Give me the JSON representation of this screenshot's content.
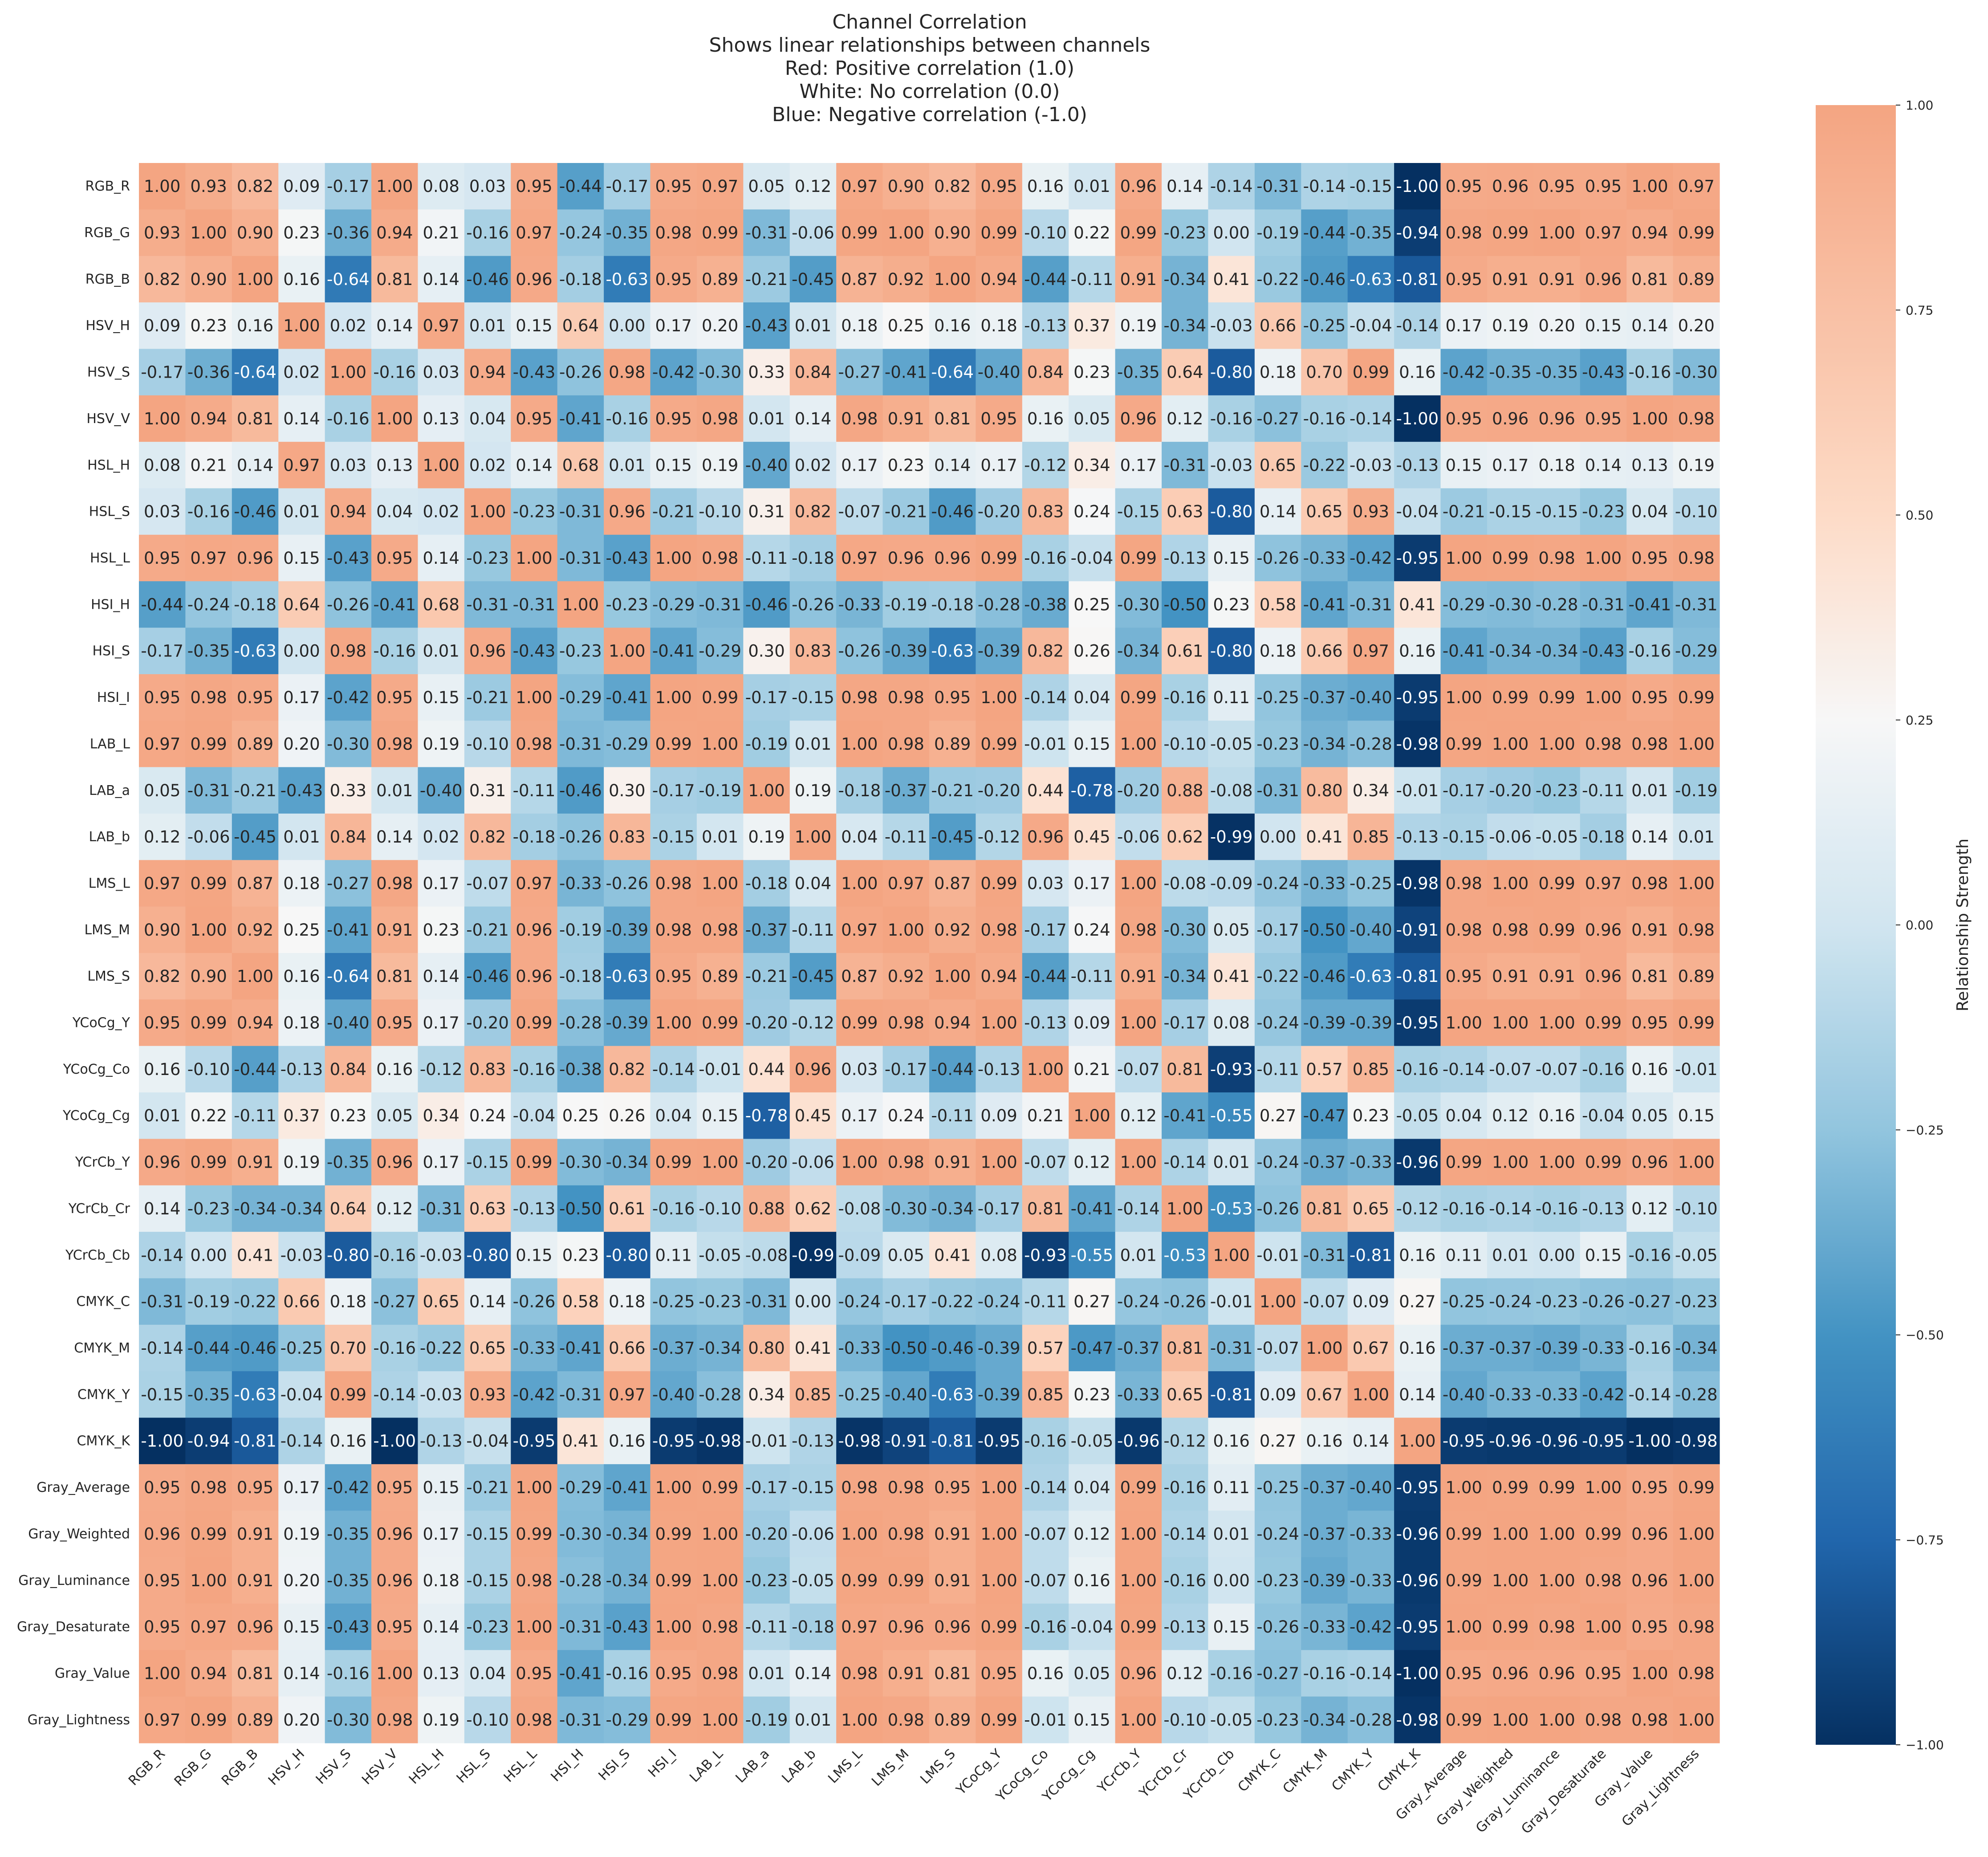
{
  "chart_data": {
    "type": "heatmap",
    "title": "Channel Correlation",
    "subtitle_lines": [
      "Shows linear relationships between channels",
      "Red: Positive correlation (1.0)",
      "White: No correlation (0.0)",
      "Blue: Negative correlation (-1.0)"
    ],
    "colorbar": {
      "label": "Relationship Strength",
      "range": [
        -1.0,
        1.0
      ],
      "ticks": [
        "1.00",
        "0.75",
        "0.50",
        "0.25",
        "0.00",
        "−0.25",
        "−0.50",
        "−0.75",
        "−1.00"
      ],
      "colormap": "RdBu_r"
    },
    "labels": [
      "RGB_R",
      "RGB_G",
      "RGB_B",
      "HSV_H",
      "HSV_S",
      "HSV_V",
      "HSL_H",
      "HSL_S",
      "HSL_L",
      "HSI_H",
      "HSI_S",
      "HSI_I",
      "LAB_L",
      "LAB_a",
      "LAB_b",
      "LMS_L",
      "LMS_M",
      "LMS_S",
      "YCoCg_Y",
      "YCoCg_Co",
      "YCoCg_Cg",
      "YCrCb_Y",
      "YCrCb_Cr",
      "YCrCb_Cb",
      "CMYK_C",
      "CMYK_M",
      "CMYK_Y",
      "CMYK_K",
      "Gray_Average",
      "Gray_Weighted",
      "Gray_Luminance",
      "Gray_Desaturate",
      "Gray_Value",
      "Gray_Lightness"
    ],
    "matrix": [
      [
        1.0,
        0.93,
        0.82,
        0.09,
        -0.17,
        1.0,
        0.08,
        0.03,
        0.95,
        -0.44,
        -0.17,
        0.95,
        0.97,
        0.05,
        0.12,
        0.97,
        0.9,
        0.82,
        0.95,
        0.16,
        0.01,
        0.96,
        0.14,
        -0.14,
        -0.31,
        -0.14,
        -0.15,
        -1.0,
        0.95,
        0.96,
        0.95,
        0.95,
        1.0,
        0.97
      ],
      [
        0.93,
        1.0,
        0.9,
        0.23,
        -0.36,
        0.94,
        0.21,
        -0.16,
        0.97,
        -0.24,
        -0.35,
        0.98,
        0.99,
        -0.31,
        -0.06,
        0.99,
        1.0,
        0.9,
        0.99,
        -0.1,
        0.22,
        0.99,
        -0.23,
        0.0,
        -0.19,
        -0.44,
        -0.35,
        -0.94,
        0.98,
        0.99,
        1.0,
        0.97,
        0.94,
        0.99
      ],
      [
        0.82,
        0.9,
        1.0,
        0.16,
        -0.64,
        0.81,
        0.14,
        -0.46,
        0.96,
        -0.18,
        -0.63,
        0.95,
        0.89,
        -0.21,
        -0.45,
        0.87,
        0.92,
        1.0,
        0.94,
        -0.44,
        -0.11,
        0.91,
        -0.34,
        0.41,
        -0.22,
        -0.46,
        -0.63,
        -0.81,
        0.95,
        0.91,
        0.91,
        0.96,
        0.81,
        0.89
      ],
      [
        0.09,
        0.23,
        0.16,
        1.0,
        0.02,
        0.14,
        0.97,
        0.01,
        0.15,
        0.64,
        0.0,
        0.17,
        0.2,
        -0.43,
        0.01,
        0.18,
        0.25,
        0.16,
        0.18,
        -0.13,
        0.37,
        0.19,
        -0.34,
        -0.03,
        0.66,
        -0.25,
        -0.04,
        -0.14,
        0.17,
        0.19,
        0.2,
        0.15,
        0.14,
        0.2
      ],
      [
        -0.17,
        -0.36,
        -0.64,
        0.02,
        1.0,
        -0.16,
        0.03,
        0.94,
        -0.43,
        -0.26,
        0.98,
        -0.42,
        -0.3,
        0.33,
        0.84,
        -0.27,
        -0.41,
        -0.64,
        -0.4,
        0.84,
        0.23,
        -0.35,
        0.64,
        -0.8,
        0.18,
        0.7,
        0.99,
        0.16,
        -0.42,
        -0.35,
        -0.35,
        -0.43,
        -0.16,
        -0.3
      ],
      [
        1.0,
        0.94,
        0.81,
        0.14,
        -0.16,
        1.0,
        0.13,
        0.04,
        0.95,
        -0.41,
        -0.16,
        0.95,
        0.98,
        0.01,
        0.14,
        0.98,
        0.91,
        0.81,
        0.95,
        0.16,
        0.05,
        0.96,
        0.12,
        -0.16,
        -0.27,
        -0.16,
        -0.14,
        -1.0,
        0.95,
        0.96,
        0.96,
        0.95,
        1.0,
        0.98
      ],
      [
        0.08,
        0.21,
        0.14,
        0.97,
        0.03,
        0.13,
        1.0,
        0.02,
        0.14,
        0.68,
        0.01,
        0.15,
        0.19,
        -0.4,
        0.02,
        0.17,
        0.23,
        0.14,
        0.17,
        -0.12,
        0.34,
        0.17,
        -0.31,
        -0.03,
        0.65,
        -0.22,
        -0.03,
        -0.13,
        0.15,
        0.17,
        0.18,
        0.14,
        0.13,
        0.19
      ],
      [
        0.03,
        -0.16,
        -0.46,
        0.01,
        0.94,
        0.04,
        0.02,
        1.0,
        -0.23,
        -0.31,
        0.96,
        -0.21,
        -0.1,
        0.31,
        0.82,
        -0.07,
        -0.21,
        -0.46,
        -0.2,
        0.83,
        0.24,
        -0.15,
        0.63,
        -0.8,
        0.14,
        0.65,
        0.93,
        -0.04,
        -0.21,
        -0.15,
        -0.15,
        -0.23,
        0.04,
        -0.1
      ],
      [
        0.95,
        0.97,
        0.96,
        0.15,
        -0.43,
        0.95,
        0.14,
        -0.23,
        1.0,
        -0.31,
        -0.43,
        1.0,
        0.98,
        -0.11,
        -0.18,
        0.97,
        0.96,
        0.96,
        0.99,
        -0.16,
        -0.04,
        0.99,
        -0.13,
        0.15,
        -0.26,
        -0.33,
        -0.42,
        -0.95,
        1.0,
        0.99,
        0.98,
        1.0,
        0.95,
        0.98
      ],
      [
        -0.44,
        -0.24,
        -0.18,
        0.64,
        -0.26,
        -0.41,
        0.68,
        -0.31,
        -0.31,
        1.0,
        -0.23,
        -0.29,
        -0.31,
        -0.46,
        -0.26,
        -0.33,
        -0.19,
        -0.18,
        -0.28,
        -0.38,
        0.25,
        -0.3,
        -0.5,
        0.23,
        0.58,
        -0.41,
        -0.31,
        0.41,
        -0.29,
        -0.3,
        -0.28,
        -0.31,
        -0.41,
        -0.31
      ],
      [
        -0.17,
        -0.35,
        -0.63,
        0.0,
        0.98,
        -0.16,
        0.01,
        0.96,
        -0.43,
        -0.23,
        1.0,
        -0.41,
        -0.29,
        0.3,
        0.83,
        -0.26,
        -0.39,
        -0.63,
        -0.39,
        0.82,
        0.26,
        -0.34,
        0.61,
        -0.8,
        0.18,
        0.66,
        0.97,
        0.16,
        -0.41,
        -0.34,
        -0.34,
        -0.43,
        -0.16,
        -0.29
      ],
      [
        0.95,
        0.98,
        0.95,
        0.17,
        -0.42,
        0.95,
        0.15,
        -0.21,
        1.0,
        -0.29,
        -0.41,
        1.0,
        0.99,
        -0.17,
        -0.15,
        0.98,
        0.98,
        0.95,
        1.0,
        -0.14,
        0.04,
        0.99,
        -0.16,
        0.11,
        -0.25,
        -0.37,
        -0.4,
        -0.95,
        1.0,
        0.99,
        0.99,
        1.0,
        0.95,
        0.99
      ],
      [
        0.97,
        0.99,
        0.89,
        0.2,
        -0.3,
        0.98,
        0.19,
        -0.1,
        0.98,
        -0.31,
        -0.29,
        0.99,
        1.0,
        -0.19,
        0.01,
        1.0,
        0.98,
        0.89,
        0.99,
        -0.01,
        0.15,
        1.0,
        -0.1,
        -0.05,
        -0.23,
        -0.34,
        -0.28,
        -0.98,
        0.99,
        1.0,
        1.0,
        0.98,
        0.98,
        1.0
      ],
      [
        0.05,
        -0.31,
        -0.21,
        -0.43,
        0.33,
        0.01,
        -0.4,
        0.31,
        -0.11,
        -0.46,
        0.3,
        -0.17,
        -0.19,
        1.0,
        0.19,
        -0.18,
        -0.37,
        -0.21,
        -0.2,
        0.44,
        -0.78,
        -0.2,
        0.88,
        -0.08,
        -0.31,
        0.8,
        0.34,
        -0.01,
        -0.17,
        -0.2,
        -0.23,
        -0.11,
        0.01,
        -0.19
      ],
      [
        0.12,
        -0.06,
        -0.45,
        0.01,
        0.84,
        0.14,
        0.02,
        0.82,
        -0.18,
        -0.26,
        0.83,
        -0.15,
        0.01,
        0.19,
        1.0,
        0.04,
        -0.11,
        -0.45,
        -0.12,
        0.96,
        0.45,
        -0.06,
        0.62,
        -0.99,
        0.0,
        0.41,
        0.85,
        -0.13,
        -0.15,
        -0.06,
        -0.05,
        -0.18,
        0.14,
        0.01
      ],
      [
        0.97,
        0.99,
        0.87,
        0.18,
        -0.27,
        0.98,
        0.17,
        -0.07,
        0.97,
        -0.33,
        -0.26,
        0.98,
        1.0,
        -0.18,
        0.04,
        1.0,
        0.97,
        0.87,
        0.99,
        0.03,
        0.17,
        1.0,
        -0.08,
        -0.09,
        -0.24,
        -0.33,
        -0.25,
        -0.98,
        0.98,
        1.0,
        0.99,
        0.97,
        0.98,
        1.0
      ],
      [
        0.9,
        1.0,
        0.92,
        0.25,
        -0.41,
        0.91,
        0.23,
        -0.21,
        0.96,
        -0.19,
        -0.39,
        0.98,
        0.98,
        -0.37,
        -0.11,
        0.97,
        1.0,
        0.92,
        0.98,
        -0.17,
        0.24,
        0.98,
        -0.3,
        0.05,
        -0.17,
        -0.5,
        -0.4,
        -0.91,
        0.98,
        0.98,
        0.99,
        0.96,
        0.91,
        0.98
      ],
      [
        0.82,
        0.9,
        1.0,
        0.16,
        -0.64,
        0.81,
        0.14,
        -0.46,
        0.96,
        -0.18,
        -0.63,
        0.95,
        0.89,
        -0.21,
        -0.45,
        0.87,
        0.92,
        1.0,
        0.94,
        -0.44,
        -0.11,
        0.91,
        -0.34,
        0.41,
        -0.22,
        -0.46,
        -0.63,
        -0.81,
        0.95,
        0.91,
        0.91,
        0.96,
        0.81,
        0.89
      ],
      [
        0.95,
        0.99,
        0.94,
        0.18,
        -0.4,
        0.95,
        0.17,
        -0.2,
        0.99,
        -0.28,
        -0.39,
        1.0,
        0.99,
        -0.2,
        -0.12,
        0.99,
        0.98,
        0.94,
        1.0,
        -0.13,
        0.09,
        1.0,
        -0.17,
        0.08,
        -0.24,
        -0.39,
        -0.39,
        -0.95,
        1.0,
        1.0,
        1.0,
        0.99,
        0.95,
        0.99
      ],
      [
        0.16,
        -0.1,
        -0.44,
        -0.13,
        0.84,
        0.16,
        -0.12,
        0.83,
        -0.16,
        -0.38,
        0.82,
        -0.14,
        -0.01,
        0.44,
        0.96,
        0.03,
        -0.17,
        -0.44,
        -0.13,
        1.0,
        0.21,
        -0.07,
        0.81,
        -0.93,
        -0.11,
        0.57,
        0.85,
        -0.16,
        -0.14,
        -0.07,
        -0.07,
        -0.16,
        0.16,
        -0.01
      ],
      [
        0.01,
        0.22,
        -0.11,
        0.37,
        0.23,
        0.05,
        0.34,
        0.24,
        -0.04,
        0.25,
        0.26,
        0.04,
        0.15,
        -0.78,
        0.45,
        0.17,
        0.24,
        -0.11,
        0.09,
        0.21,
        1.0,
        0.12,
        -0.41,
        -0.55,
        0.27,
        -0.47,
        0.23,
        -0.05,
        0.04,
        0.12,
        0.16,
        -0.04,
        0.05,
        0.15
      ],
      [
        0.96,
        0.99,
        0.91,
        0.19,
        -0.35,
        0.96,
        0.17,
        -0.15,
        0.99,
        -0.3,
        -0.34,
        0.99,
        1.0,
        -0.2,
        -0.06,
        1.0,
        0.98,
        0.91,
        1.0,
        -0.07,
        0.12,
        1.0,
        -0.14,
        0.01,
        -0.24,
        -0.37,
        -0.33,
        -0.96,
        0.99,
        1.0,
        1.0,
        0.99,
        0.96,
        1.0
      ],
      [
        0.14,
        -0.23,
        -0.34,
        -0.34,
        0.64,
        0.12,
        -0.31,
        0.63,
        -0.13,
        -0.5,
        0.61,
        -0.16,
        -0.1,
        0.88,
        0.62,
        -0.08,
        -0.3,
        -0.34,
        -0.17,
        0.81,
        -0.41,
        -0.14,
        1.0,
        -0.53,
        -0.26,
        0.81,
        0.65,
        -0.12,
        -0.16,
        -0.14,
        -0.16,
        -0.13,
        0.12,
        -0.1
      ],
      [
        -0.14,
        0.0,
        0.41,
        -0.03,
        -0.8,
        -0.16,
        -0.03,
        -0.8,
        0.15,
        0.23,
        -0.8,
        0.11,
        -0.05,
        -0.08,
        -0.99,
        -0.09,
        0.05,
        0.41,
        0.08,
        -0.93,
        -0.55,
        0.01,
        -0.53,
        1.0,
        -0.01,
        -0.31,
        -0.81,
        0.16,
        0.11,
        0.01,
        0.0,
        0.15,
        -0.16,
        -0.05
      ],
      [
        -0.31,
        -0.19,
        -0.22,
        0.66,
        0.18,
        -0.27,
        0.65,
        0.14,
        -0.26,
        0.58,
        0.18,
        -0.25,
        -0.23,
        -0.31,
        0.0,
        -0.24,
        -0.17,
        -0.22,
        -0.24,
        -0.11,
        0.27,
        -0.24,
        -0.26,
        -0.01,
        1.0,
        -0.07,
        0.09,
        0.27,
        -0.25,
        -0.24,
        -0.23,
        -0.26,
        -0.27,
        -0.23
      ],
      [
        -0.14,
        -0.44,
        -0.46,
        -0.25,
        0.7,
        -0.16,
        -0.22,
        0.65,
        -0.33,
        -0.41,
        0.66,
        -0.37,
        -0.34,
        0.8,
        0.41,
        -0.33,
        -0.5,
        -0.46,
        -0.39,
        0.57,
        -0.47,
        -0.37,
        0.81,
        -0.31,
        -0.07,
        1.0,
        0.67,
        0.16,
        -0.37,
        -0.37,
        -0.39,
        -0.33,
        -0.16,
        -0.34
      ],
      [
        -0.15,
        -0.35,
        -0.63,
        -0.04,
        0.99,
        -0.14,
        -0.03,
        0.93,
        -0.42,
        -0.31,
        0.97,
        -0.4,
        -0.28,
        0.34,
        0.85,
        -0.25,
        -0.4,
        -0.63,
        -0.39,
        0.85,
        0.23,
        -0.33,
        0.65,
        -0.81,
        0.09,
        0.67,
        1.0,
        0.14,
        -0.4,
        -0.33,
        -0.33,
        -0.42,
        -0.14,
        -0.28
      ],
      [
        -1.0,
        -0.94,
        -0.81,
        -0.14,
        0.16,
        -1.0,
        -0.13,
        -0.04,
        -0.95,
        0.41,
        0.16,
        -0.95,
        -0.98,
        -0.01,
        -0.13,
        -0.98,
        -0.91,
        -0.81,
        -0.95,
        -0.16,
        -0.05,
        -0.96,
        -0.12,
        0.16,
        0.27,
        0.16,
        0.14,
        1.0,
        -0.95,
        -0.96,
        -0.96,
        -0.95,
        -1.0,
        -0.98
      ],
      [
        0.95,
        0.98,
        0.95,
        0.17,
        -0.42,
        0.95,
        0.15,
        -0.21,
        1.0,
        -0.29,
        -0.41,
        1.0,
        0.99,
        -0.17,
        -0.15,
        0.98,
        0.98,
        0.95,
        1.0,
        -0.14,
        0.04,
        0.99,
        -0.16,
        0.11,
        -0.25,
        -0.37,
        -0.4,
        -0.95,
        1.0,
        0.99,
        0.99,
        1.0,
        0.95,
        0.99
      ],
      [
        0.96,
        0.99,
        0.91,
        0.19,
        -0.35,
        0.96,
        0.17,
        -0.15,
        0.99,
        -0.3,
        -0.34,
        0.99,
        1.0,
        -0.2,
        -0.06,
        1.0,
        0.98,
        0.91,
        1.0,
        -0.07,
        0.12,
        1.0,
        -0.14,
        0.01,
        -0.24,
        -0.37,
        -0.33,
        -0.96,
        0.99,
        1.0,
        1.0,
        0.99,
        0.96,
        1.0
      ],
      [
        0.95,
        1.0,
        0.91,
        0.2,
        -0.35,
        0.96,
        0.18,
        -0.15,
        0.98,
        -0.28,
        -0.34,
        0.99,
        1.0,
        -0.23,
        -0.05,
        0.99,
        0.99,
        0.91,
        1.0,
        -0.07,
        0.16,
        1.0,
        -0.16,
        0.0,
        -0.23,
        -0.39,
        -0.33,
        -0.96,
        0.99,
        1.0,
        1.0,
        0.98,
        0.96,
        1.0
      ],
      [
        0.95,
        0.97,
        0.96,
        0.15,
        -0.43,
        0.95,
        0.14,
        -0.23,
        1.0,
        -0.31,
        -0.43,
        1.0,
        0.98,
        -0.11,
        -0.18,
        0.97,
        0.96,
        0.96,
        0.99,
        -0.16,
        -0.04,
        0.99,
        -0.13,
        0.15,
        -0.26,
        -0.33,
        -0.42,
        -0.95,
        1.0,
        0.99,
        0.98,
        1.0,
        0.95,
        0.98
      ],
      [
        1.0,
        0.94,
        0.81,
        0.14,
        -0.16,
        1.0,
        0.13,
        0.04,
        0.95,
        -0.41,
        -0.16,
        0.95,
        0.98,
        0.01,
        0.14,
        0.98,
        0.91,
        0.81,
        0.95,
        0.16,
        0.05,
        0.96,
        0.12,
        -0.16,
        -0.27,
        -0.16,
        -0.14,
        -1.0,
        0.95,
        0.96,
        0.96,
        0.95,
        1.0,
        0.98
      ],
      [
        0.97,
        0.99,
        0.89,
        0.2,
        -0.3,
        0.98,
        0.19,
        -0.1,
        0.98,
        -0.31,
        -0.29,
        0.99,
        1.0,
        -0.19,
        0.01,
        1.0,
        0.98,
        0.89,
        0.99,
        -0.01,
        0.15,
        1.0,
        -0.1,
        -0.05,
        -0.23,
        -0.34,
        -0.28,
        -0.98,
        0.99,
        1.0,
        1.0,
        0.98,
        0.98,
        1.0
      ]
    ]
  }
}
